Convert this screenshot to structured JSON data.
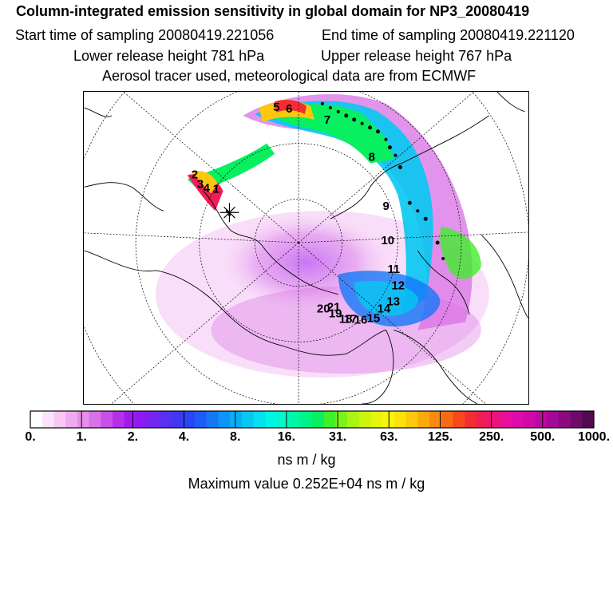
{
  "header": {
    "title": "Column-integrated emission sensitivity in global domain for NP3_20080419",
    "start_time": "Start time of sampling 20080419.221056",
    "end_time": "End time of sampling 20080419.221120",
    "lower_height": "Lower release height  781 hPa",
    "upper_height": "Upper release height  767 hPa",
    "note": "Aerosol tracer used, meteorological data are from ECMWF"
  },
  "map": {
    "point_labels": [
      "1",
      "2",
      "3",
      "4",
      "5",
      "6",
      "7",
      "8",
      "9",
      "10",
      "11",
      "12",
      "13",
      "14",
      "15",
      "16",
      "17",
      "18",
      "19",
      "20",
      "21"
    ]
  },
  "colorbar": {
    "ticks": [
      "0.",
      "1.",
      "2.",
      "4.",
      "8.",
      "16.",
      "31.",
      "63.",
      "125.",
      "250.",
      "500.",
      "1000."
    ],
    "colors": [
      "#ffffff",
      "#fbe4fb",
      "#f5c8f5",
      "#eeaaf0",
      "#e68ee9",
      "#d870e6",
      "#c94fe6",
      "#b531e8",
      "#a019ef",
      "#8c1bf3",
      "#7326f0",
      "#5a2ff0",
      "#3f38f2",
      "#2846f4",
      "#1d5cf6",
      "#1478f6",
      "#0d94f6",
      "#08aef5",
      "#06c8f1",
      "#04e0ec",
      "#00f4e4",
      "#00fbc8",
      "#00f7a5",
      "#00f386",
      "#08ef60",
      "#40ef2a",
      "#7cf21b",
      "#aaf313",
      "#ccf40f",
      "#e6f50c",
      "#fbf30a",
      "#fde10a",
      "#fdc70b",
      "#fca90c",
      "#fa8a10",
      "#f86a12",
      "#f64a1a",
      "#f32d33",
      "#f01d57",
      "#ee137a",
      "#e80d9a",
      "#de0aa9",
      "#d00aaa",
      "#bb0aa2",
      "#a40a95",
      "#8a0a82",
      "#6f0a6b",
      "#520a50"
    ],
    "unit": "ns m / kg",
    "max_value": "Maximum value  0.252E+04 ns m / kg"
  }
}
